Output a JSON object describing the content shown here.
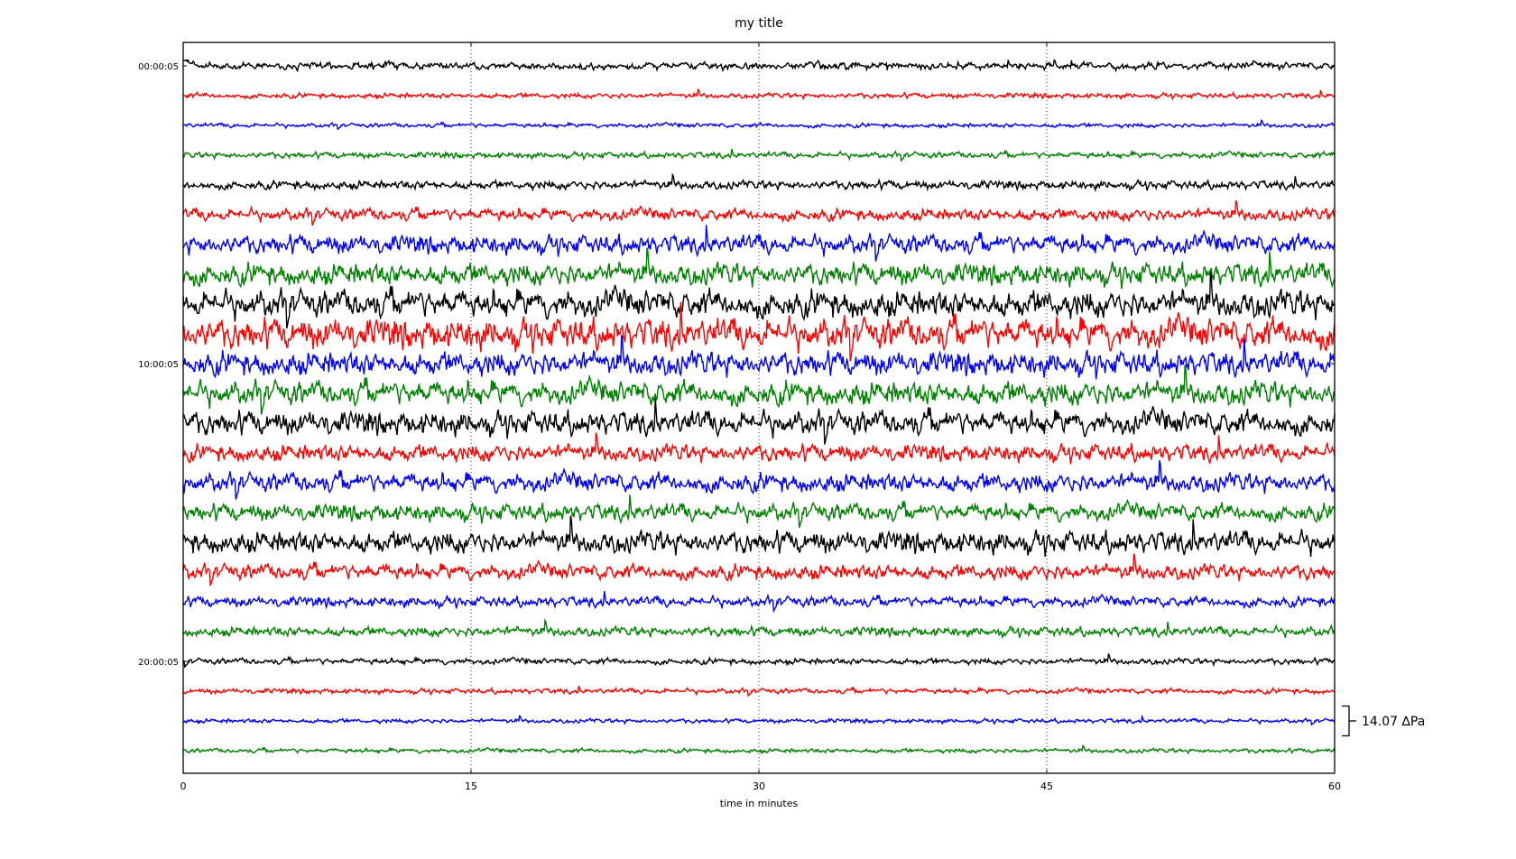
{
  "chart_data": {
    "type": "line",
    "title": "my title",
    "xlabel": "time in minutes",
    "ylabel": "",
    "xlim": [
      0,
      60
    ],
    "x_ticks": [
      "0",
      "15",
      "30",
      "45",
      "60"
    ],
    "x_tick_values": [
      0,
      15,
      30,
      45,
      60
    ],
    "grid": "vertical dotted at 15, 30, 45",
    "y_tick_labels": [
      {
        "row": 0,
        "label": "00:00:05"
      },
      {
        "row": 10,
        "label": "10:00:05"
      },
      {
        "row": 20,
        "label": "20:00:05"
      }
    ],
    "row_count": 24,
    "row_colors": [
      "#000000",
      "#ff0000",
      "#0000ff",
      "#008000"
    ],
    "trace_rms_amplitude_dPa": [
      0.8,
      0.6,
      0.5,
      0.7,
      1.0,
      1.4,
      2.2,
      2.6,
      3.2,
      3.6,
      2.8,
      2.8,
      2.8,
      2.0,
      2.2,
      2.0,
      2.6,
      1.8,
      1.2,
      1.1,
      0.7,
      0.6,
      0.5,
      0.5
    ],
    "scale_bar": {
      "value": 14.07,
      "label": "14.07 ∆Pa",
      "row": 22
    }
  }
}
